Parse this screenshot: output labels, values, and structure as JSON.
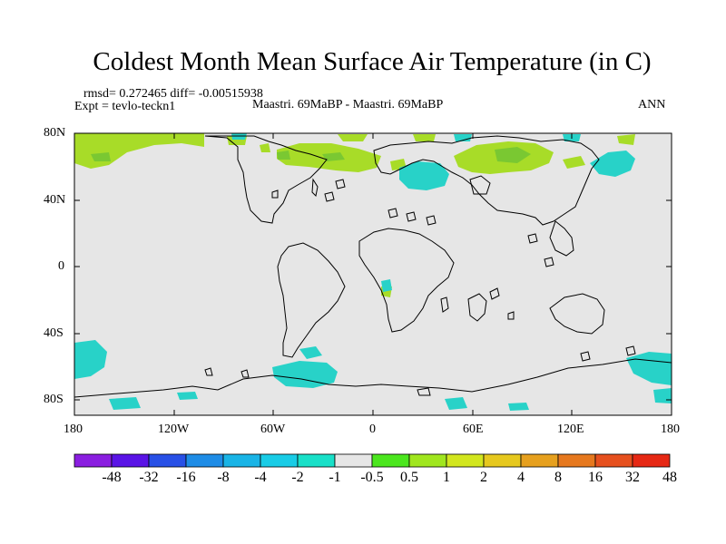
{
  "title": "Coldest Month Mean Surface Air Temperature (in C)",
  "stats": {
    "rmsd_text": "rmsd= 0.272465 diff= -0.00515938"
  },
  "experiment": {
    "expt_text": "Expt = tevlo-teckn1",
    "description": "Maastri. 69MaBP - Maastri. 69MaBP",
    "season": "ANN"
  },
  "axes": {
    "lat_ticks": [
      "80N",
      "40N",
      "0",
      "40S",
      "80S"
    ],
    "lon_ticks": [
      "180",
      "120W",
      "60W",
      "0",
      "60E",
      "120E",
      "180"
    ]
  },
  "colorbar": {
    "colors": [
      "#8a1ee0",
      "#5a14e6",
      "#2850e6",
      "#1e8ce6",
      "#19b4e6",
      "#19cce6",
      "#19e0c8",
      "#e6e6e6",
      "#4be61e",
      "#a0e61e",
      "#d2e61e",
      "#e6c81e",
      "#e6a01e",
      "#e6781e",
      "#e6501e",
      "#e62814"
    ],
    "labels": [
      "-48",
      "-32",
      "-16",
      "-8",
      "-4",
      "-2",
      "-1",
      "-0.5",
      "0.5",
      "1",
      "2",
      "4",
      "8",
      "16",
      "32",
      "48"
    ]
  },
  "map": {
    "ocean_color": "#e6e6e6",
    "warm_color": "#a8dc28",
    "warm_dark_color": "#7ac832",
    "cool_color": "#28d2c8",
    "coast_color": "#000000"
  }
}
